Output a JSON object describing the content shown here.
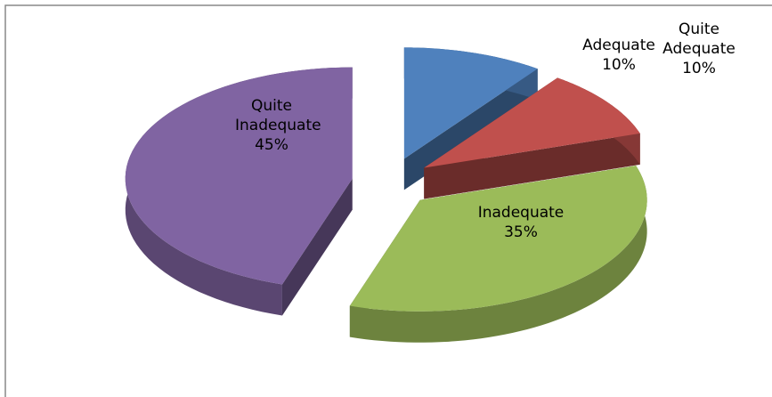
{
  "chart_data": {
    "type": "pie3d",
    "categories": [
      "Quite Adequate",
      "Adequate",
      "Inadequate",
      "Quite Inadequate"
    ],
    "values": [
      10,
      10,
      35,
      45
    ],
    "value_labels": [
      "10%",
      "10%",
      "35%",
      "45%"
    ],
    "colors": [
      "#4f81bd",
      "#c0504d",
      "#9bbb59",
      "#8064a2"
    ]
  }
}
